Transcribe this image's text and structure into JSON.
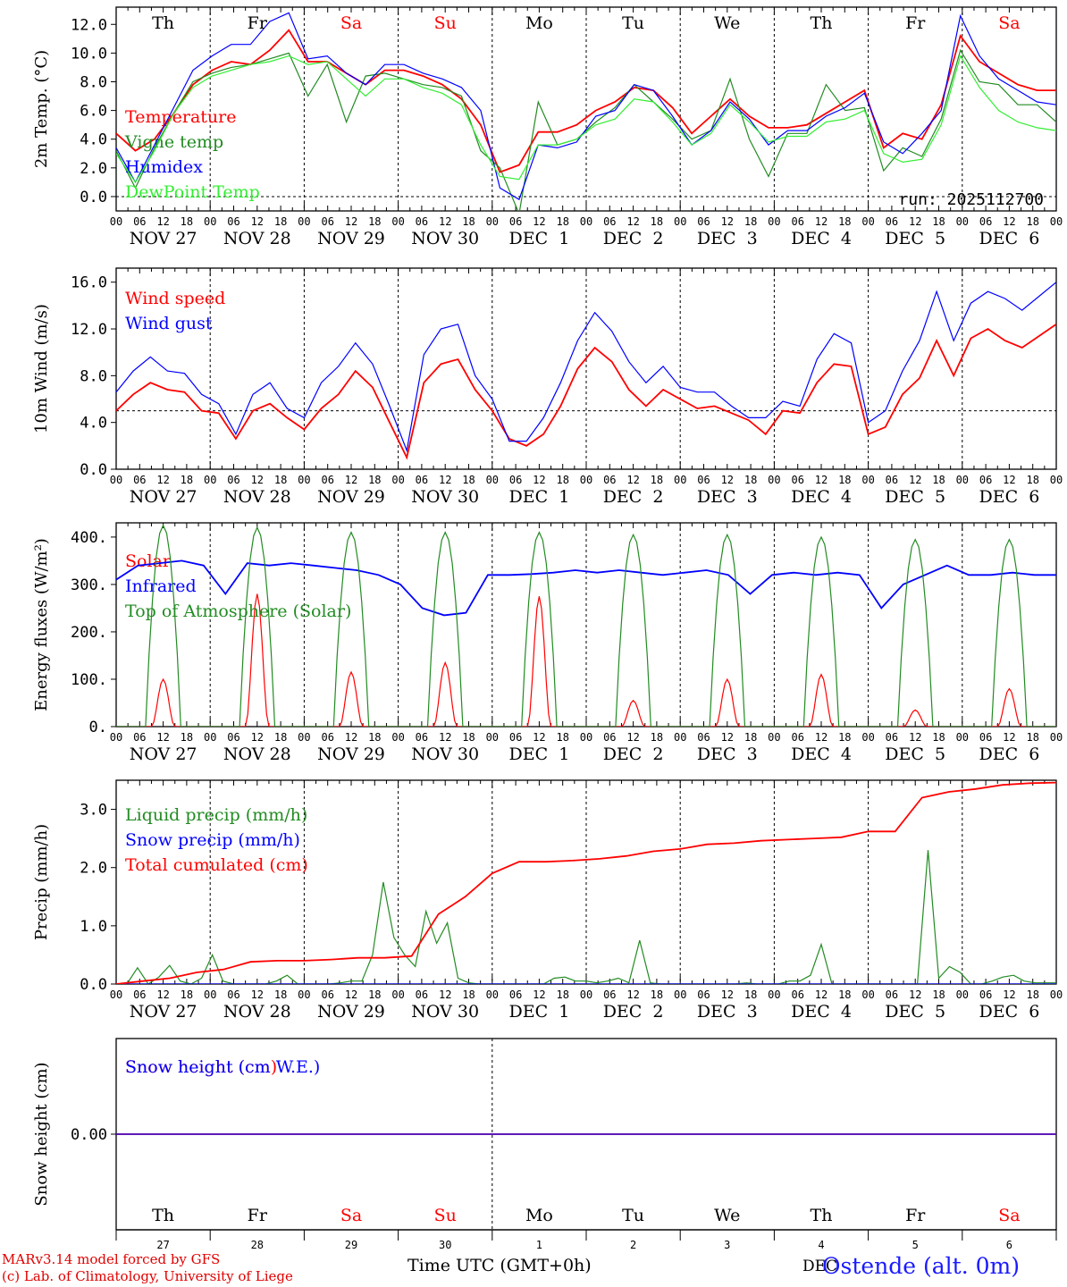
{
  "colors": {
    "temperature": "#ff0000",
    "vigne": "#228b22",
    "humidex": "#0000ff",
    "dewpoint": "#33ee33",
    "wind_speed": "#ff0000",
    "wind_gust": "#0000ff",
    "solar": "#ff0000",
    "infrared": "#0000ff",
    "toa": "#228b22",
    "liquid": "#228b22",
    "snow_precip": "#0000ff",
    "total_cum": "#ff0000",
    "weekday": "#000000",
    "weekend": "#ff0000"
  },
  "days": [
    {
      "dow": "Th",
      "weekend": false,
      "date": "NOV 27",
      "dnum": "27"
    },
    {
      "dow": "Fr",
      "weekend": false,
      "date": "NOV 28",
      "dnum": "28"
    },
    {
      "dow": "Sa",
      "weekend": true,
      "date": "NOV 29",
      "dnum": "29"
    },
    {
      "dow": "Su",
      "weekend": true,
      "date": "NOV 30",
      "dnum": "30"
    },
    {
      "dow": "Mo",
      "weekend": false,
      "date": "DEC  1",
      "dnum": "1"
    },
    {
      "dow": "Tu",
      "weekend": false,
      "date": "DEC  2",
      "dnum": "2"
    },
    {
      "dow": "We",
      "weekend": false,
      "date": "DEC  3",
      "dnum": "3"
    },
    {
      "dow": "Th",
      "weekend": false,
      "date": "DEC  4",
      "dnum": "4"
    },
    {
      "dow": "Fr",
      "weekend": false,
      "date": "DEC  5",
      "dnum": "5"
    },
    {
      "dow": "Sa",
      "weekend": true,
      "date": "DEC  6",
      "dnum": "6"
    }
  ],
  "hour_labels": [
    "00",
    "06",
    "12",
    "18"
  ],
  "final_hour_label": "00",
  "run_label": "run: 2025112700",
  "footer": {
    "credit_line1": "MARv3.14 model forced by GFS",
    "credit_line2": "(c) Lab. of Climatology, University of Liege",
    "xlabel": "Time UTC (GMT+0h)",
    "station": "Ostende (alt. 0m)",
    "month": "DEC"
  },
  "chart_data": [
    {
      "id": "temp",
      "type": "line",
      "ylabel": "2m Temp. (°C)",
      "ylim": [
        -1,
        13.2
      ],
      "zero_line": 0,
      "ticks": [
        0,
        2,
        4,
        6,
        8,
        10,
        12
      ],
      "tick_labels": [
        "0.0",
        "2.0",
        "4.0",
        "6.0",
        "8.0",
        "10.0",
        "12.0"
      ],
      "x_hours_step": 6,
      "series": [
        {
          "name": "Temperature",
          "color": "temperature",
          "values": [
            4.4,
            3.2,
            4.0,
            5.8,
            7.8,
            8.8,
            9.4,
            9.2,
            10.2,
            11.6,
            9.4,
            9.4,
            8.6,
            7.8,
            8.8,
            8.8,
            8.4,
            7.8,
            6.8,
            5.0,
            1.7,
            2.2,
            4.5,
            4.5,
            5.0,
            6.0,
            6.6,
            7.6,
            7.4,
            6.2,
            4.4,
            5.6,
            6.8,
            5.6,
            4.8,
            4.8,
            5.0,
            5.8,
            6.6,
            7.4,
            3.4,
            4.4,
            4.0,
            6.4,
            11.2,
            9.4,
            8.6,
            7.8,
            7.4,
            7.4
          ]
        },
        {
          "name": "Vigne temp",
          "color": "vigne",
          "values": [
            3.2,
            0.6,
            3.4,
            5.8,
            8.0,
            8.6,
            9.0,
            9.2,
            9.6,
            10.0,
            7.0,
            9.2,
            5.2,
            8.4,
            8.6,
            8.2,
            7.8,
            7.6,
            7.0,
            3.2,
            2.0,
            -1.2,
            6.6,
            3.6,
            4.0,
            5.2,
            6.2,
            7.8,
            6.6,
            5.4,
            4.0,
            4.6,
            8.2,
            4.0,
            1.4,
            4.4,
            4.4,
            7.8,
            6.0,
            6.2,
            1.8,
            3.4,
            2.8,
            5.4,
            10.2,
            8.0,
            7.8,
            6.4,
            6.4,
            5.2
          ]
        },
        {
          "name": "Humidex",
          "color": "humidex",
          "values": [
            3.4,
            1.0,
            3.6,
            6.2,
            8.8,
            9.8,
            10.6,
            10.6,
            12.2,
            12.8,
            9.6,
            9.8,
            8.6,
            7.8,
            9.2,
            9.2,
            8.6,
            8.2,
            7.6,
            6.0,
            0.6,
            -0.2,
            3.6,
            3.4,
            3.8,
            5.6,
            6.0,
            7.8,
            7.4,
            5.6,
            3.6,
            4.6,
            6.6,
            5.4,
            3.6,
            4.6,
            4.6,
            5.6,
            6.2,
            7.2,
            3.8,
            3.0,
            4.4,
            6.0,
            12.6,
            9.8,
            8.2,
            7.4,
            6.6,
            6.4
          ]
        },
        {
          "name": "DewPoint Temp",
          "color": "dewpoint",
          "values": [
            3.0,
            1.0,
            3.2,
            5.8,
            7.6,
            8.4,
            8.8,
            9.2,
            9.4,
            9.8,
            9.2,
            9.4,
            8.2,
            7.0,
            8.2,
            8.2,
            7.6,
            7.2,
            6.4,
            3.6,
            1.4,
            1.2,
            3.6,
            3.6,
            4.0,
            5.0,
            5.4,
            6.8,
            6.6,
            5.2,
            3.6,
            4.4,
            6.4,
            5.2,
            3.8,
            4.2,
            4.2,
            5.2,
            5.4,
            6.0,
            3.0,
            2.4,
            2.6,
            5.0,
            9.8,
            7.6,
            6.0,
            5.2,
            4.8,
            4.6
          ]
        }
      ]
    },
    {
      "id": "wind",
      "type": "line",
      "ylabel": "10m Wind (m/s)",
      "ylim": [
        0,
        17.2
      ],
      "ref_line": 5,
      "ticks": [
        0,
        4,
        8,
        12,
        16
      ],
      "tick_labels": [
        "0.0",
        "4.0",
        "8.0",
        "12.0",
        "16.0"
      ],
      "x_hours_step": 6,
      "series": [
        {
          "name": "Wind speed",
          "color": "wind_speed",
          "values": [
            5.0,
            6.4,
            7.4,
            6.8,
            6.6,
            5.0,
            4.8,
            2.6,
            5.0,
            5.6,
            4.4,
            3.4,
            5.2,
            6.4,
            8.4,
            7.0,
            4.0,
            1.0,
            7.4,
            9.0,
            9.4,
            6.8,
            5.0,
            2.6,
            2.0,
            3.0,
            5.4,
            8.6,
            10.4,
            9.2,
            6.8,
            5.4,
            6.8,
            6.0,
            5.2,
            5.4,
            4.8,
            4.2,
            3.0,
            5.0,
            4.8,
            7.4,
            9.0,
            8.8,
            3.0,
            3.6,
            6.4,
            7.8,
            11.0,
            8.0,
            11.2,
            12.0,
            11.0,
            10.4,
            11.4,
            12.4
          ]
        },
        {
          "name": "Wind gust",
          "color": "wind_gust",
          "values": [
            6.6,
            8.4,
            9.6,
            8.4,
            8.2,
            6.4,
            5.6,
            3.0,
            6.4,
            7.4,
            5.2,
            4.4,
            7.4,
            8.8,
            10.8,
            9.0,
            5.4,
            1.6,
            9.8,
            12.0,
            12.4,
            8.0,
            6.0,
            2.4,
            2.4,
            4.4,
            7.4,
            11.0,
            13.4,
            11.8,
            9.2,
            7.4,
            8.8,
            7.0,
            6.6,
            6.6,
            5.4,
            4.4,
            4.4,
            5.8,
            5.4,
            9.4,
            11.6,
            10.8,
            4.0,
            5.0,
            8.4,
            11.0,
            15.2,
            11.0,
            14.2,
            15.2,
            14.6,
            13.6,
            14.8,
            16.0
          ]
        }
      ]
    },
    {
      "id": "flux",
      "type": "line",
      "ylabel": "Energy fluxes (W/m²)",
      "ylim": [
        0,
        430
      ],
      "ticks": [
        0,
        100,
        200,
        300,
        400
      ],
      "tick_labels": [
        "0.",
        "100.",
        "200.",
        "300.",
        "400."
      ],
      "x_hours_step": 3,
      "series": [
        {
          "name": "Solar",
          "color": "solar",
          "peaks": [
            100,
            280,
            115,
            135,
            275,
            55,
            100,
            110,
            35,
            80
          ]
        },
        {
          "name": "Infrared",
          "color": "infrared",
          "values": [
            310,
            340,
            345,
            350,
            340,
            280,
            345,
            340,
            345,
            340,
            335,
            330,
            320,
            300,
            250,
            235,
            240,
            320,
            320,
            322,
            325,
            330,
            325,
            330,
            325,
            320,
            325,
            330,
            320,
            280,
            320,
            325,
            320,
            325,
            320,
            250,
            300,
            320,
            340,
            320,
            320,
            325,
            320,
            320
          ]
        },
        {
          "name": "Top of Atmosphere (Solar)",
          "color": "toa",
          "peaks": [
            425,
            420,
            410,
            410,
            410,
            405,
            405,
            400,
            395,
            395
          ]
        }
      ]
    },
    {
      "id": "precip",
      "type": "line",
      "ylabel": "Precip (mm/h)",
      "ylim": [
        0,
        3.5
      ],
      "ticks": [
        0,
        1,
        2,
        3
      ],
      "tick_labels": [
        "0.0",
        "1.0",
        "2.0",
        "3.0"
      ],
      "x_hours_step": 3,
      "series": [
        {
          "name": "Liquid precip (mm/h)",
          "color": "liquid",
          "values": [
            0,
            0,
            0.28,
            0,
            0.12,
            0.32,
            0.05,
            0,
            0.1,
            0.5,
            0.05,
            0,
            0,
            0,
            0,
            0.05,
            0.15,
            0,
            0,
            0,
            0,
            0.02,
            0.05,
            0.05,
            0.5,
            1.75,
            0.8,
            0.5,
            0.3,
            1.25,
            0.7,
            1.05,
            0.1,
            0.02,
            0,
            0,
            0,
            0,
            0,
            0,
            0,
            0.1,
            0.12,
            0.05,
            0.05,
            0.02,
            0.05,
            0.1,
            0.02,
            0.75,
            0.02,
            0,
            0,
            0,
            0,
            0,
            0,
            0,
            0,
            0.02,
            0,
            0,
            0,
            0.05,
            0.05,
            0.15,
            0.68,
            0,
            0,
            0,
            0,
            0,
            0,
            0,
            0,
            0,
            2.3,
            0.1,
            0.3,
            0.2,
            0,
            0,
            0.05,
            0.12,
            0.15,
            0.05,
            0.02,
            0.02,
            0.02
          ]
        },
        {
          "name": "Snow precip (mm/h)",
          "color": "snow_precip",
          "values": [
            0,
            0
          ]
        },
        {
          "name": "Total cumulated (cm)",
          "color": "total_cum",
          "values": [
            0,
            0.05,
            0.1,
            0.2,
            0.25,
            0.38,
            0.4,
            0.4,
            0.42,
            0.45,
            0.45,
            0.48,
            1.2,
            1.5,
            1.9,
            2.1,
            2.1,
            2.12,
            2.15,
            2.2,
            2.28,
            2.32,
            2.4,
            2.42,
            2.46,
            2.48,
            2.5,
            2.52,
            2.62,
            2.62,
            3.2,
            3.3,
            3.35,
            3.42,
            3.45,
            3.46
          ]
        }
      ]
    },
    {
      "id": "snow",
      "type": "line",
      "ylabel": "Snow height (cm)",
      "ylim": [
        -1,
        1
      ],
      "ticks": [
        0
      ],
      "tick_labels": [
        "0.00"
      ],
      "series": [
        {
          "name": "Snow height (cm)",
          "color": "total_cum",
          "values": [
            0,
            0
          ]
        },
        {
          "name": "Snow height (cm W.E.)",
          "color": "humidex",
          "values": [
            0,
            0
          ]
        }
      ]
    }
  ]
}
